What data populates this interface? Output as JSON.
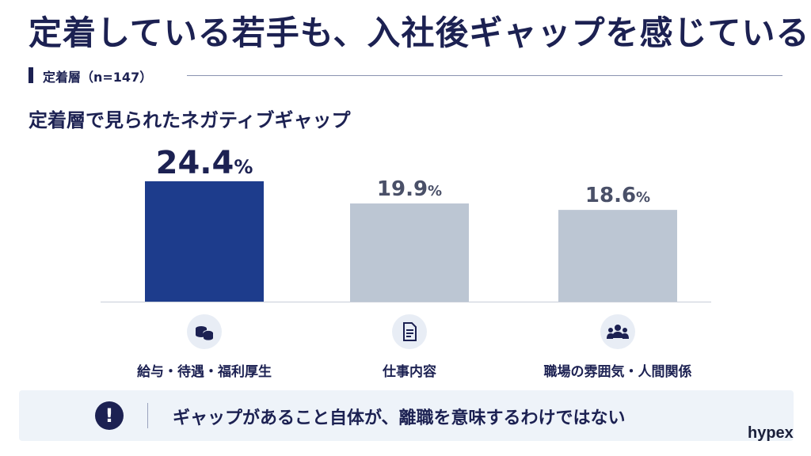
{
  "title": "定着している若手も、入社後ギャップを感じている",
  "segment": {
    "label": "定着層（n=147）"
  },
  "chart_data": {
    "type": "bar",
    "title": "定着層で見られたネガティブギャップ",
    "categories": [
      "給与・待遇・福利厚生",
      "仕事内容",
      "職場の雰囲気・人間関係"
    ],
    "icons": [
      "coins-icon",
      "document-icon",
      "people-icon"
    ],
    "values": [
      24.4,
      19.9,
      18.6
    ],
    "value_labels": [
      "24.4",
      "19.9",
      "18.6"
    ],
    "unit": "%",
    "highlight_index": 0,
    "colors": {
      "highlight": "#1d3c8c",
      "default": "#bcc6d3"
    }
  },
  "note": {
    "text": "ギャップがあること自体が、離職を意味するわけではない",
    "icon": "exclamation-icon"
  },
  "brand": "hypex"
}
